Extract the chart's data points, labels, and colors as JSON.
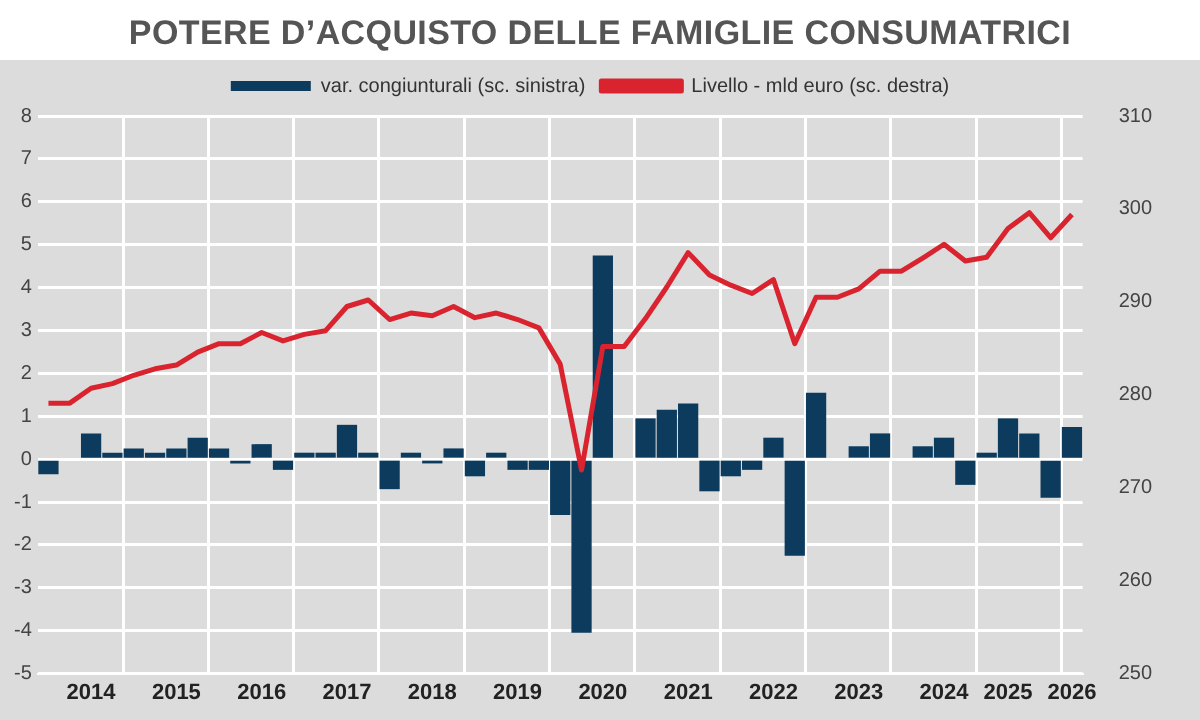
{
  "chart_data": {
    "type": "bar",
    "title": "POTERE D’ACQUISTO DELLE FAMIGLIE CONSUMATRICI",
    "categories": [
      null,
      null,
      "2014",
      null,
      null,
      null,
      "2015",
      null,
      null,
      null,
      "2016",
      null,
      null,
      null,
      "2017",
      null,
      null,
      null,
      "2018",
      null,
      null,
      null,
      "2019",
      null,
      null,
      null,
      "2020",
      null,
      null,
      null,
      "2021",
      null,
      null,
      null,
      "2022",
      null,
      null,
      null,
      "2023",
      null,
      null,
      null,
      "2024",
      null,
      null,
      "2025",
      null,
      null,
      "2026"
    ],
    "series": [
      {
        "name": "var. congiunturali (sc. sinistra)",
        "color": "#0d3b5e",
        "values": [
          -0.35,
          0,
          0.6,
          0.15,
          0.25,
          0.15,
          0.25,
          0.5,
          0.25,
          -0.1,
          0.35,
          -0.25,
          0.15,
          0.15,
          0.8,
          0.15,
          -0.7,
          0.15,
          -0.1,
          0.25,
          -0.4,
          0.15,
          -0.25,
          -0.25,
          -1.3,
          -4.05,
          4.75,
          0,
          0.95,
          1.15,
          1.3,
          -0.75,
          -0.4,
          -0.25,
          0.5,
          -2.25,
          1.55,
          0,
          0.3,
          0.6,
          0,
          0.3,
          0.5,
          -0.6,
          0.15,
          0.95,
          0.6,
          -0.9,
          0.75
        ]
      },
      {
        "name": "Livello - mld euro (sc. destra)",
        "type": "line",
        "axis": "y2",
        "color": "#d9242f",
        "values": [
          279.1,
          279.1,
          280.7,
          281.2,
          282.1,
          282.8,
          283.2,
          284.6,
          285.5,
          285.5,
          286.7,
          285.8,
          286.5,
          286.9,
          289.5,
          290.2,
          288.1,
          288.8,
          288.5,
          289.5,
          288.3,
          288.8,
          288.1,
          287.2,
          283.3,
          271.9,
          285.2,
          285.2,
          288.2,
          291.6,
          295.3,
          292.9,
          291.8,
          290.9,
          292.4,
          285.5,
          290.5,
          290.5,
          291.4,
          293.3,
          293.3,
          294.7,
          296.2,
          294.4,
          294.8,
          297.9,
          299.6,
          296.9,
          299.4
        ]
      }
    ],
    "ylim": [
      -5,
      8
    ],
    "yticks": [
      -5,
      -4,
      -3,
      -2,
      -1,
      0,
      1,
      2,
      3,
      4,
      5,
      6,
      7,
      8
    ],
    "y2lim": [
      250,
      310
    ],
    "y2ticks": [
      250,
      260,
      270,
      280,
      290,
      300,
      310
    ],
    "grid": true,
    "legend": "top",
    "marker": "none",
    "line_style": "solid"
  }
}
